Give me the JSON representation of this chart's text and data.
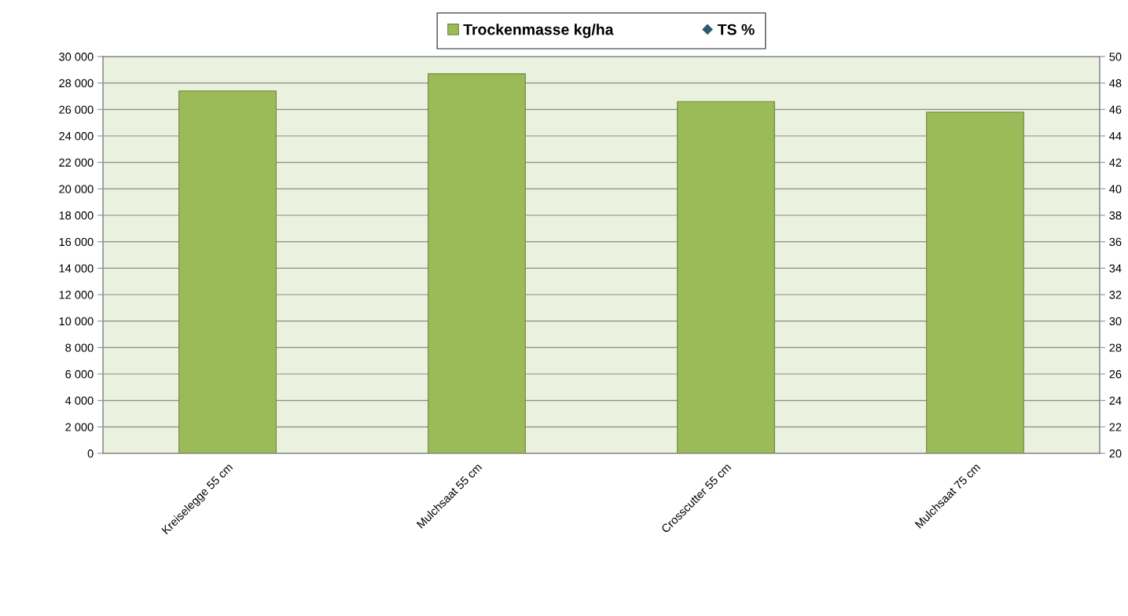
{
  "chart_data": {
    "type": "bar",
    "categories": [
      "Kreiselegge 55 cm",
      "Mulchsaat 55 cm",
      "Crosscutter 55 cm",
      "Mulchsaat 75 cm"
    ],
    "series": [
      {
        "name": "Trockenmasse kg/ha",
        "color": "#9bbb59",
        "values": [
          27400,
          28700,
          26600,
          25800
        ]
      },
      {
        "name": "TS %",
        "type": "scatter",
        "color": "#2e5a6e",
        "marker": "diamond",
        "values": [
          null,
          null,
          null,
          null
        ]
      }
    ],
    "ylim": [
      0,
      30000
    ],
    "yticks": [
      0,
      {
        "value": 2000,
        "label": "2 000"
      },
      {
        "value": 4000,
        "label": "4 000"
      },
      {
        "value": 6000,
        "label": "6 000"
      },
      {
        "value": 8000,
        "label": "8 000"
      },
      {
        "value": 10000,
        "label": "10 000"
      },
      {
        "value": 12000,
        "label": "12 000"
      },
      {
        "value": 14000,
        "label": "14 000"
      },
      {
        "value": 16000,
        "label": "16 000"
      },
      {
        "value": 18000,
        "label": "18 000"
      },
      {
        "value": 20000,
        "label": "20 000"
      },
      {
        "value": 22000,
        "label": "22 000"
      },
      {
        "value": 24000,
        "label": "24 000"
      },
      {
        "value": 26000,
        "label": "26 000"
      },
      {
        "value": 28000,
        "label": "28 000"
      },
      {
        "value": 30000,
        "label": "30 000"
      }
    ],
    "y2lim": [
      20,
      50
    ],
    "y2ticks": [
      20,
      22,
      24,
      26,
      28,
      30,
      32,
      34,
      36,
      38,
      40,
      42,
      44,
      46,
      48,
      50
    ],
    "grid": "y",
    "legend": "top"
  }
}
